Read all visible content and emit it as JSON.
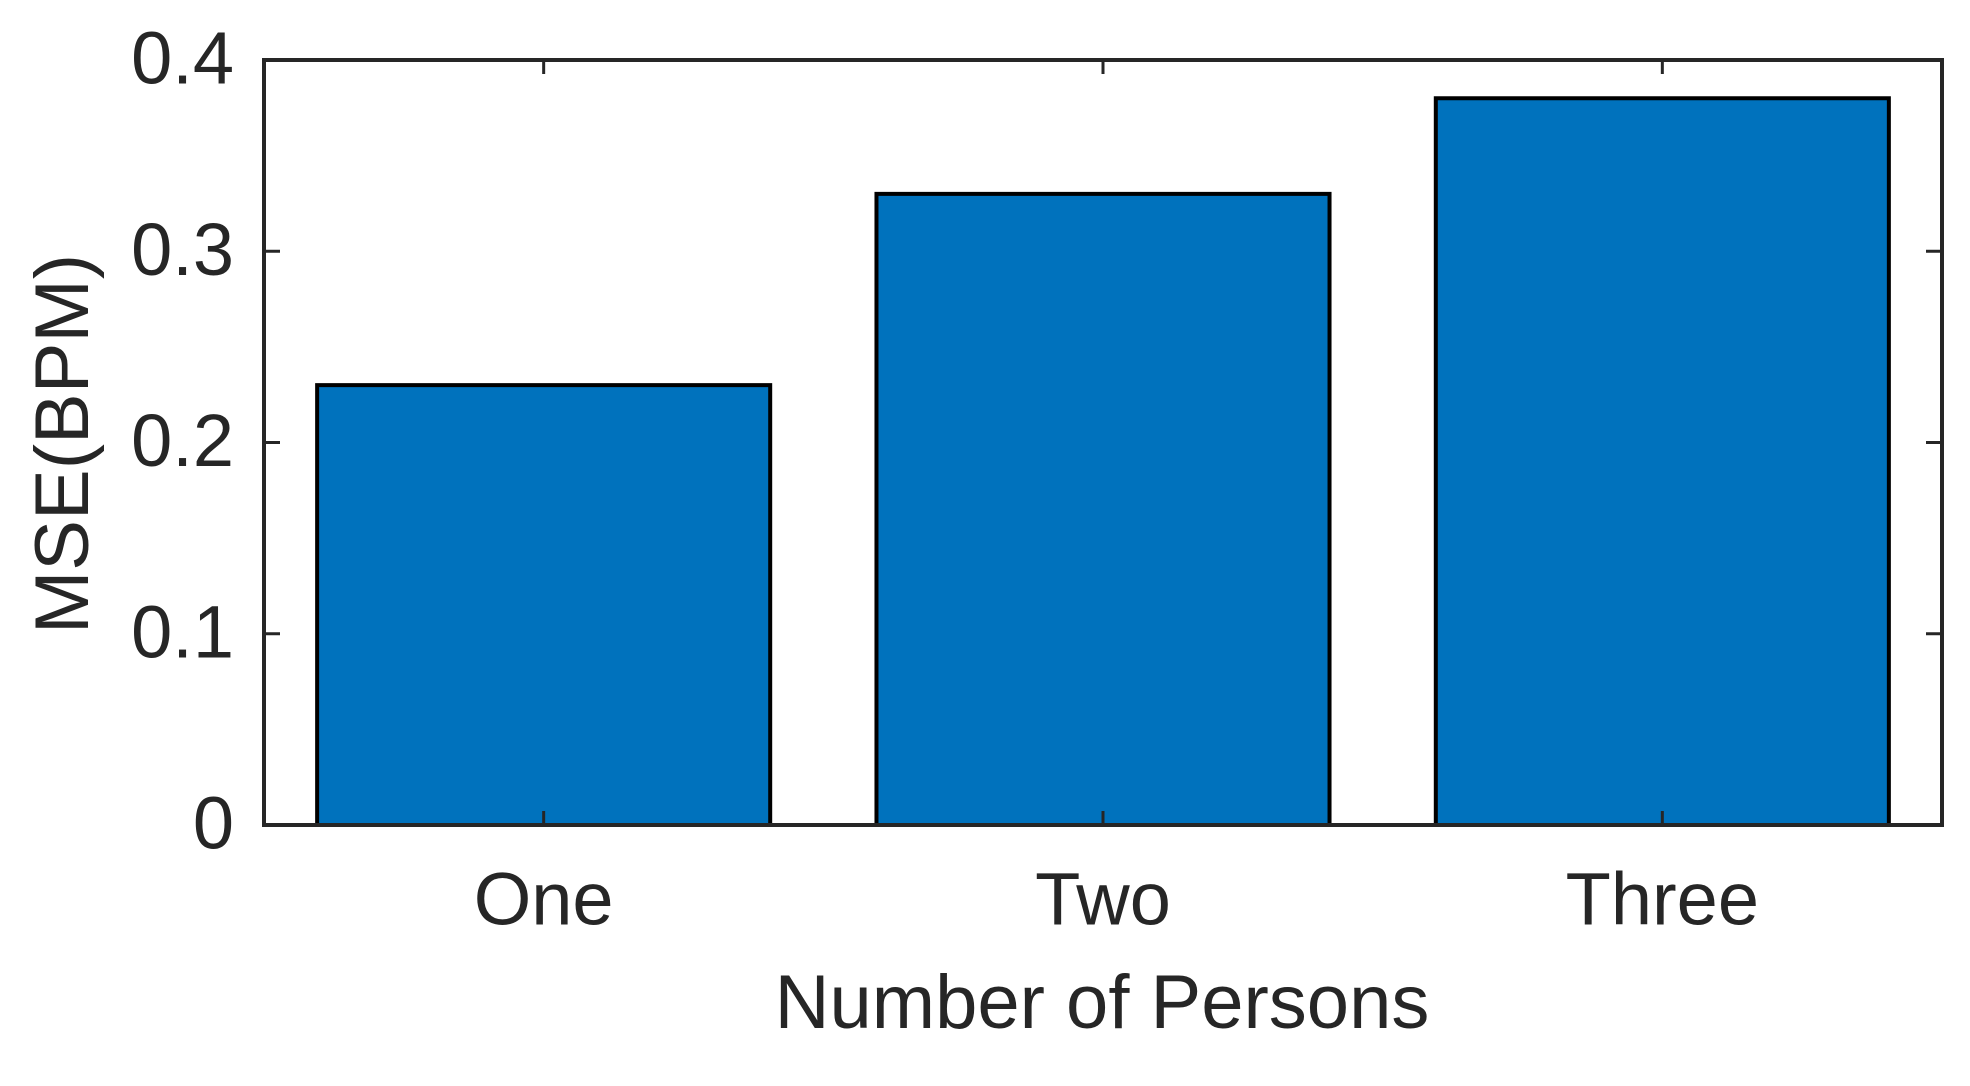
{
  "chart_data": {
    "type": "bar",
    "x_label": "Number of Persons",
    "y_label": "MSE(BPM)",
    "categories": [
      "One",
      "Two",
      "Three"
    ],
    "values": [
      0.23,
      0.33,
      0.38
    ],
    "color": "#0072bd",
    "ylim": [
      0,
      0.4
    ],
    "yticks": [
      0,
      0.1,
      0.2,
      0.3,
      0.4
    ],
    "grid": false
  }
}
